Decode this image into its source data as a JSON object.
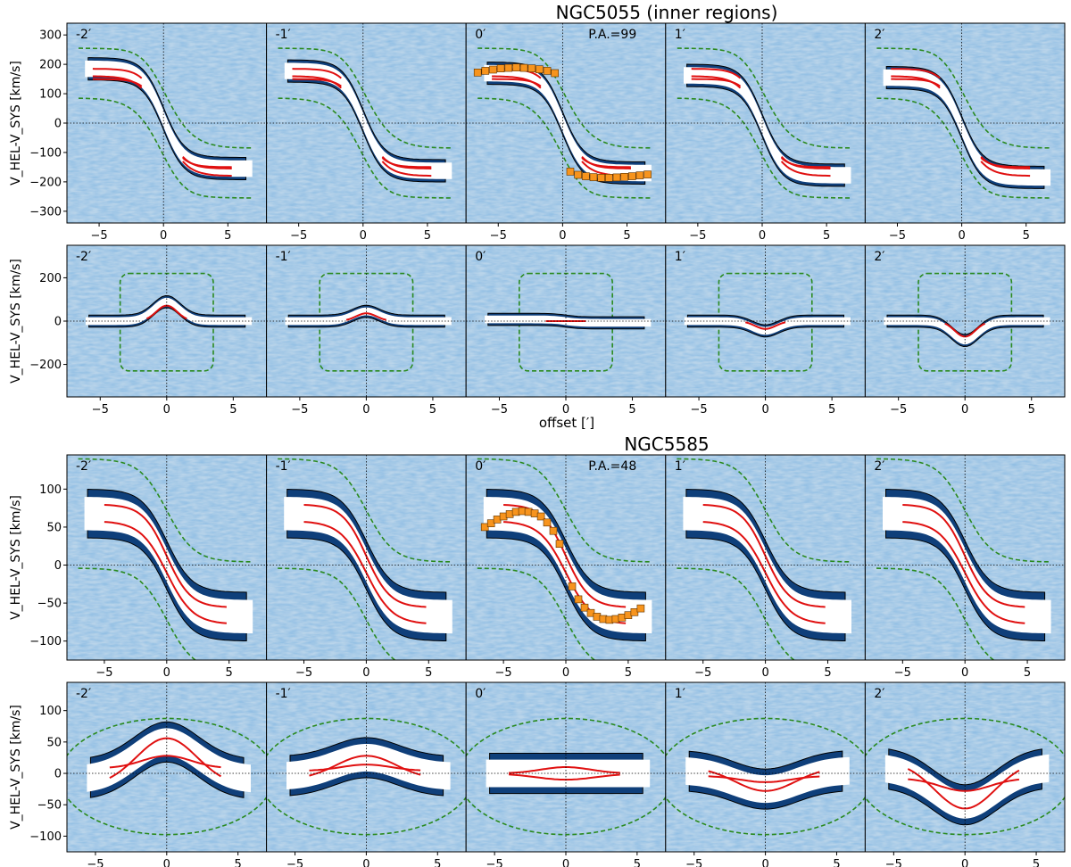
{
  "figure": {
    "titles": [
      "NGC5055 (inner regions)",
      "NGC5585"
    ],
    "xlabel": "offset [′]",
    "ylabel": "V_HEL-V_SYS [km/s]"
  },
  "colors": {
    "background_cube": "#8fb8d8",
    "emission_dark": "#0f3f7a",
    "mask": "#ffffff",
    "model_line": "#e01010",
    "rotation_curve_marker": "#f7941d",
    "envelope_line": "#2a8a1f",
    "contour_positive": "#000000",
    "contour_negative": "#aaaaaa"
  },
  "chart_data": [
    {
      "type": "scatter",
      "galaxy": "NGC5055",
      "title": "NGC5055 (inner regions)",
      "row": "major-axis slices",
      "xlabel": "",
      "ylabel": "V_HEL-V_SYS [km/s]",
      "xlim": [
        -7.5,
        8
      ],
      "ylim": [
        -340,
        340
      ],
      "yticks": [
        -300,
        -200,
        -100,
        0,
        100,
        200,
        300
      ],
      "xticks": [
        -5,
        0,
        5
      ],
      "panel_labels": [
        "-2′",
        "-1′",
        "0′",
        "1′",
        "2′"
      ],
      "annotation": "P.A.=99",
      "rotation_curve": {
        "x": [
          -6.6,
          -6.0,
          -5.4,
          -4.8,
          -4.2,
          -3.6,
          -3.0,
          -2.4,
          -1.8,
          -1.2,
          -0.6,
          0.6,
          1.2,
          1.8,
          2.4,
          3.0,
          3.6,
          4.2,
          4.8,
          5.4,
          6.0,
          6.6
        ],
        "y": [
          172,
          178,
          182,
          186,
          188,
          189,
          188,
          186,
          183,
          178,
          170,
          -165,
          -176,
          -181,
          -184,
          -186,
          -186,
          -185,
          -183,
          -181,
          -178,
          -175
        ]
      }
    },
    {
      "type": "scatter",
      "galaxy": "NGC5055",
      "row": "minor-axis slices",
      "xlabel": "offset [′]",
      "ylabel": "V_HEL-V_SYS [km/s]",
      "xlim": [
        -7.5,
        7.5
      ],
      "ylim": [
        -350,
        350
      ],
      "yticks": [
        -200,
        0,
        200
      ],
      "xticks": [
        -5,
        0,
        5
      ],
      "panel_labels": [
        "-2′",
        "-1′",
        "0′",
        "1′",
        "2′"
      ]
    },
    {
      "type": "scatter",
      "galaxy": "NGC5585",
      "title": "NGC5585",
      "row": "major-axis slices",
      "xlabel": "",
      "ylabel": "V_HEL-V_SYS [km/s]",
      "xlim": [
        -8,
        8
      ],
      "ylim": [
        -125,
        145
      ],
      "yticks": [
        -100,
        -50,
        0,
        50,
        100
      ],
      "xticks": [
        -5,
        0,
        5
      ],
      "panel_labels": [
        "-2′",
        "-1′",
        "0′",
        "1′",
        "2′"
      ],
      "annotation": "P.A.=48",
      "rotation_curve": {
        "x": [
          -6.5,
          -6.0,
          -5.5,
          -5.0,
          -4.5,
          -4.0,
          -3.5,
          -3.0,
          -2.5,
          -2.0,
          -1.5,
          -1.0,
          -0.5,
          0.5,
          1.0,
          1.5,
          2.0,
          2.5,
          3.0,
          3.5,
          4.0,
          4.5,
          5.0,
          5.5,
          6.0
        ],
        "y": [
          50,
          55,
          60,
          64,
          67,
          70,
          71,
          70,
          68,
          64,
          56,
          45,
          28,
          -28,
          -45,
          -56,
          -63,
          -68,
          -71,
          -72,
          -71,
          -69,
          -66,
          -62,
          -57
        ]
      }
    },
    {
      "type": "scatter",
      "galaxy": "NGC5585",
      "row": "minor-axis slices",
      "xlabel": "offset [′]",
      "ylabel": "V_HEL-V_SYS [km/s]",
      "xlim": [
        -7,
        7
      ],
      "ylim": [
        -125,
        145
      ],
      "yticks": [
        -100,
        -50,
        0,
        50,
        100
      ],
      "xticks": [
        -5,
        0,
        5
      ],
      "panel_labels": [
        "-2′",
        "-1′",
        "0′",
        "1′",
        "2′"
      ]
    }
  ]
}
